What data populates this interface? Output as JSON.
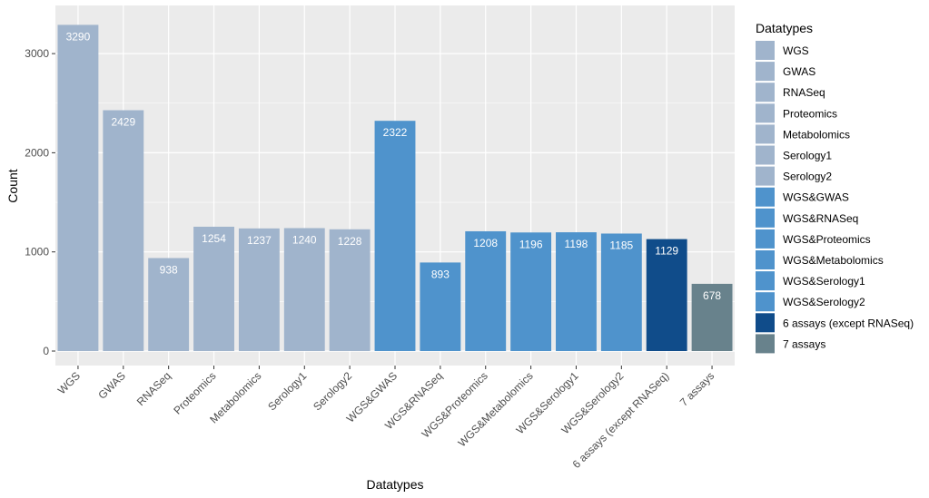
{
  "chart_data": {
    "type": "bar",
    "xlabel": "Datatypes",
    "ylabel": "Count",
    "ylim": [
      0,
      3300
    ],
    "yticks": [
      0,
      1000,
      2000,
      3000
    ],
    "grid": true,
    "categories": [
      "WGS",
      "GWAS",
      "RNASeq",
      "Proteomics",
      "Metabolomics",
      "Serology1",
      "Serology2",
      "WGS&GWAS",
      "WGS&RNASeq",
      "WGS&Proteomics",
      "WGS&Metabolomics",
      "WGS&Serology1",
      "WGS&Serology2",
      "6 assays (except RNASeq)",
      "7 assays"
    ],
    "values": [
      3290,
      2429,
      938,
      1254,
      1237,
      1240,
      1228,
      2322,
      893,
      1208,
      1196,
      1198,
      1185,
      1129,
      678
    ],
    "colors": [
      "#A0B4CC",
      "#A0B4CC",
      "#A0B4CC",
      "#A0B4CC",
      "#A0B4CC",
      "#A0B4CC",
      "#A0B4CC",
      "#4F93CC",
      "#4F93CC",
      "#4F93CC",
      "#4F93CC",
      "#4F93CC",
      "#4F93CC",
      "#104C8A",
      "#68828C"
    ],
    "legend": {
      "title": "Datatypes",
      "placement": "right",
      "entries": [
        "WGS",
        "GWAS",
        "RNASeq",
        "Proteomics",
        "Metabolomics",
        "Serology1",
        "Serology2",
        "WGS&GWAS",
        "WGS&RNASeq",
        "WGS&Proteomics",
        "WGS&Metabolomics",
        "WGS&Serology1",
        "WGS&Serology2",
        "6 assays (except RNASeq)",
        "7 assays"
      ]
    },
    "panel_background": "#EBEBEB",
    "grid_color": "#FFFFFF"
  }
}
